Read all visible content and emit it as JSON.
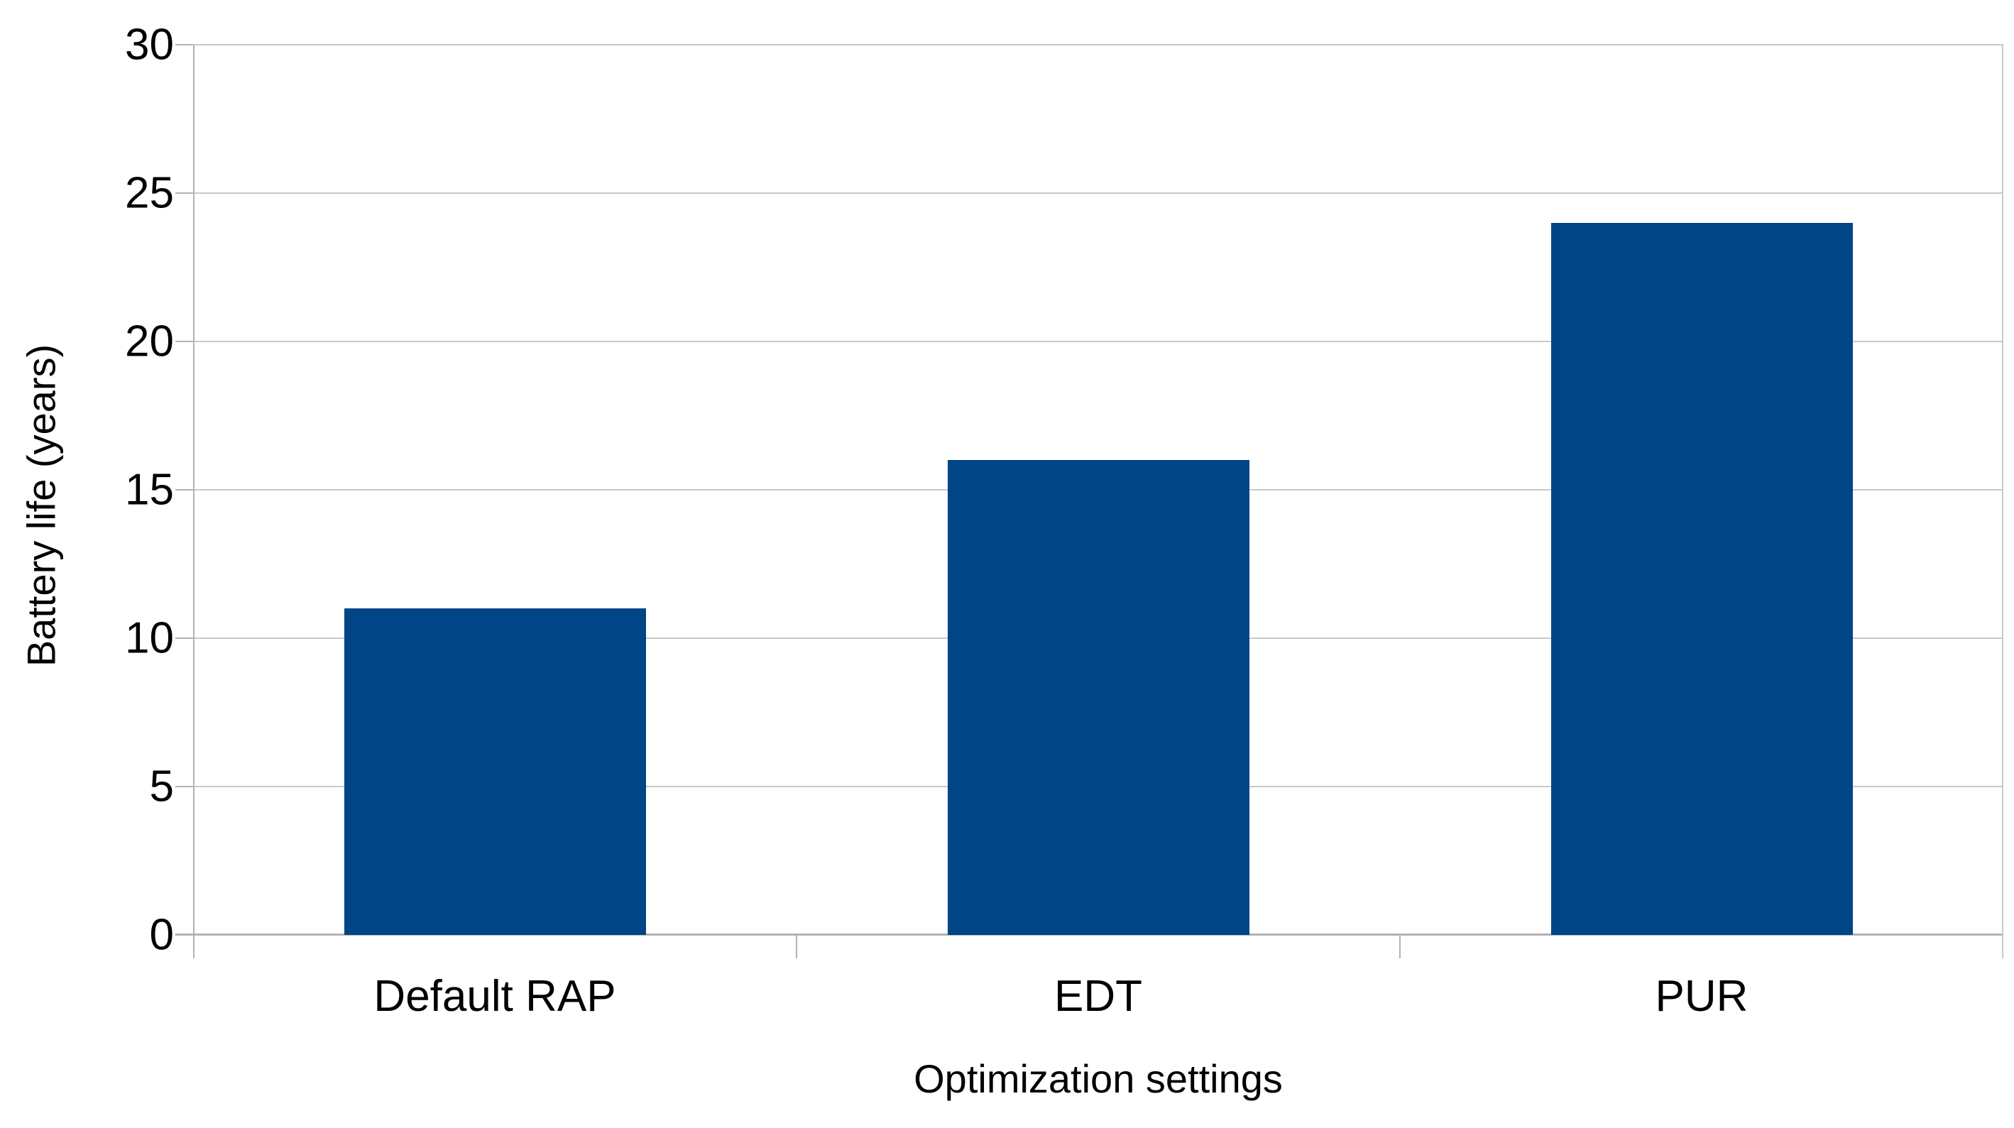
{
  "chart_data": {
    "type": "bar",
    "title": "",
    "categories": [
      "Default RAP",
      "EDT",
      "PUR"
    ],
    "values": [
      11,
      16,
      24
    ],
    "xlabel": "Optimization settings",
    "ylabel": "Battery life (years)",
    "ylim": [
      0,
      30
    ],
    "yticks": [
      0,
      5,
      10,
      15,
      20,
      25,
      30
    ],
    "grid": true,
    "legend": "none",
    "colors": {
      "bar_fill": "#004586",
      "gridline": "#c9c9c9",
      "axis": "#b3b3b3",
      "text": "#000000",
      "background": "#ffffff"
    }
  }
}
